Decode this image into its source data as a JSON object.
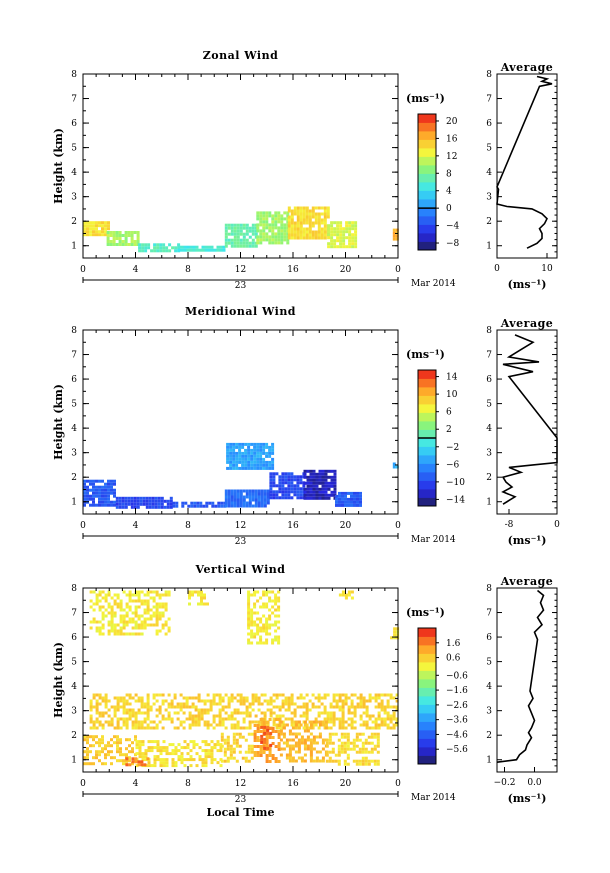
{
  "figure": {
    "date_label": "Mar 2014",
    "day_label": "23",
    "xlabel": "Local Time",
    "x_ticks": [
      "0",
      "4",
      "8",
      "12",
      "16",
      "20",
      "0"
    ],
    "y_ticks": [
      "1",
      "2",
      "3",
      "4",
      "5",
      "6",
      "7",
      "8"
    ],
    "ylabel": "Height (km)",
    "cbar_unit": "(ms⁻¹)",
    "profile_title": "Average",
    "profile_xlabel": "(ms⁻¹)"
  },
  "chart_data": [
    {
      "type": "heatmap",
      "title": "Zonal Wind",
      "xlabel": "",
      "ylabel": "Height (km)",
      "xlim": [
        0,
        24
      ],
      "ylim": [
        0.5,
        8
      ],
      "colorbar": {
        "unit": "(ms⁻¹)",
        "vmin": -9.6,
        "vmax": 21.6,
        "ticks": [
          -8,
          -4,
          0,
          4,
          8,
          12,
          16,
          20
        ],
        "tick_labels": [
          "−8",
          "−4",
          "0",
          "4",
          "8",
          "12",
          "16",
          "20"
        ],
        "zero_line": 0
      },
      "regions": [
        {
          "x": [
            0,
            2
          ],
          "y": [
            1.45,
            2.0
          ],
          "value": 14
        },
        {
          "x": [
            1.8,
            4.2
          ],
          "y": [
            1.0,
            1.6
          ],
          "value": 10
        },
        {
          "x": [
            4.2,
            7.2
          ],
          "y": [
            0.8,
            1.1
          ],
          "value": 6
        },
        {
          "x": [
            7.2,
            10.8
          ],
          "y": [
            0.8,
            1.0
          ],
          "value": 5
        },
        {
          "x": [
            10.8,
            13.2
          ],
          "y": [
            1.0,
            1.9
          ],
          "value": 7
        },
        {
          "x": [
            13.2,
            15.6
          ],
          "y": [
            1.1,
            2.4
          ],
          "value": 10
        },
        {
          "x": [
            15.6,
            18.6
          ],
          "y": [
            1.3,
            2.6
          ],
          "value": 14
        },
        {
          "x": [
            18.6,
            20.8
          ],
          "y": [
            0.9,
            2.0
          ],
          "value": 12
        },
        {
          "x": [
            23.6,
            24
          ],
          "y": [
            1.3,
            1.7
          ],
          "value": 16
        }
      ],
      "profile": {
        "title": "Average",
        "xlabel": "(ms⁻¹)",
        "xlim": [
          0,
          12
        ],
        "x_ticks": [
          0,
          10
        ],
        "height": [
          0.9,
          1.1,
          1.3,
          1.5,
          1.7,
          1.9,
          2.1,
          2.3,
          2.5,
          2.6,
          2.7,
          3.3,
          3.4,
          7.5,
          7.6,
          7.7,
          7.8,
          7.9
        ],
        "value": [
          6,
          8,
          9,
          9,
          8.5,
          9.5,
          10,
          9,
          7,
          2,
          0,
          0.3,
          0,
          8.5,
          11,
          9,
          10,
          8
        ]
      }
    },
    {
      "type": "heatmap",
      "title": "Meridional Wind",
      "xlabel": "",
      "ylabel": "Height (km)",
      "xlim": [
        0,
        24
      ],
      "ylim": [
        0.5,
        8
      ],
      "colorbar": {
        "unit": "(ms⁻¹)",
        "vmin": -15.5,
        "vmax": 15.5,
        "ticks": [
          -14,
          -10,
          -6,
          -2,
          2,
          6,
          10,
          14
        ],
        "tick_labels": [
          "−14",
          "−10",
          "−6",
          "−2",
          "2",
          "6",
          "10",
          "14"
        ],
        "zero_line": 0
      },
      "regions": [
        {
          "x": [
            0,
            2.5
          ],
          "y": [
            0.9,
            1.9
          ],
          "value": -9
        },
        {
          "x": [
            2.5,
            6.8
          ],
          "y": [
            0.8,
            1.2
          ],
          "value": -10
        },
        {
          "x": [
            6.8,
            10.8
          ],
          "y": [
            0.8,
            1.0
          ],
          "value": -9
        },
        {
          "x": [
            10.8,
            14.2
          ],
          "y": [
            0.8,
            1.5
          ],
          "value": -8
        },
        {
          "x": [
            14.2,
            16.8
          ],
          "y": [
            1.2,
            2.2
          ],
          "value": -10
        },
        {
          "x": [
            16.8,
            19.2
          ],
          "y": [
            1.1,
            2.3
          ],
          "value": -13
        },
        {
          "x": [
            19.2,
            21.2
          ],
          "y": [
            0.8,
            1.4
          ],
          "value": -9
        },
        {
          "x": [
            10.9,
            14.5
          ],
          "y": [
            2.3,
            3.4
          ],
          "value": -5
        },
        {
          "x": [
            23.6,
            24
          ],
          "y": [
            2.4,
            2.6
          ],
          "value": -4
        }
      ],
      "profile": {
        "title": "Average",
        "xlabel": "(ms⁻¹)",
        "xlim": [
          -10,
          0
        ],
        "x_ticks": [
          -8,
          0
        ],
        "height": [
          0.9,
          1.2,
          1.4,
          1.6,
          1.8,
          2.0,
          2.2,
          2.4,
          2.5,
          2.6,
          3.6,
          6.1,
          6.3,
          6.6,
          6.7,
          6.9,
          7.2,
          7.5,
          7.8
        ],
        "value": [
          -9,
          -7,
          -9,
          -7.5,
          -8.5,
          -9,
          -6,
          -8,
          -4,
          0,
          0,
          -8,
          -4,
          -9,
          -3,
          -8,
          -6,
          -4,
          -7
        ]
      }
    },
    {
      "type": "heatmap",
      "title": "Vertical Wind",
      "xlabel": "Local Time",
      "ylabel": "Height (km)",
      "xlim": [
        0,
        24
      ],
      "ylim": [
        0.5,
        8
      ],
      "colorbar": {
        "unit": "(ms⁻¹)",
        "vmin": -6.6,
        "vmax": 2.6,
        "ticks": [
          -5.6,
          -4.6,
          -3.6,
          -2.6,
          -1.6,
          -0.6,
          0.6,
          1.6
        ],
        "tick_labels": [
          "−5.6",
          "−4.6",
          "−3.6",
          "−2.6",
          "−1.6",
          "−0.6",
          "0.6",
          "1.6"
        ],
        "zero_line": null
      },
      "regions": [
        {
          "x": [
            0.5,
            6.5
          ],
          "y": [
            6.1,
            7.9
          ],
          "value": 0.2
        },
        {
          "x": [
            8.0,
            9.5
          ],
          "y": [
            7.3,
            7.9
          ],
          "value": 0.2
        },
        {
          "x": [
            12.5,
            15.0
          ],
          "y": [
            5.8,
            7.9
          ],
          "value": 0.2
        },
        {
          "x": [
            19.5,
            20.6
          ],
          "y": [
            7.6,
            7.9
          ],
          "value": 0.2
        },
        {
          "x": [
            23.4,
            24
          ],
          "y": [
            6.0,
            6.4
          ],
          "value": 0.2
        },
        {
          "x": [
            0.5,
            24
          ],
          "y": [
            2.3,
            3.7
          ],
          "value": 0.5
        },
        {
          "x": [
            0,
            4.0
          ],
          "y": [
            0.8,
            2.0
          ],
          "value": 0.6
        },
        {
          "x": [
            4.0,
            10.5
          ],
          "y": [
            0.8,
            1.8
          ],
          "value": 0.3
        },
        {
          "x": [
            10.5,
            13.0
          ],
          "y": [
            0.9,
            2.1
          ],
          "value": 0.5
        },
        {
          "x": [
            13.0,
            15.0
          ],
          "y": [
            0.9,
            2.7
          ],
          "value": 1.2
        },
        {
          "x": [
            15.0,
            18.5
          ],
          "y": [
            1.0,
            2.6
          ],
          "value": 0.9
        },
        {
          "x": [
            18.5,
            22.5
          ],
          "y": [
            0.8,
            2.1
          ],
          "value": 0.4
        },
        {
          "x": [
            3.0,
            5.0
          ],
          "y": [
            0.8,
            1.1
          ],
          "value": 1.6
        },
        {
          "x": [
            13.5,
            14.3
          ],
          "y": [
            1.4,
            2.5
          ],
          "value": 2.0
        }
      ],
      "profile": {
        "title": "Average",
        "xlabel": "(ms⁻¹)",
        "xlim": [
          -0.25,
          0.15
        ],
        "x_ticks": [
          -0.2,
          0.0
        ],
        "x_tick_labels": [
          "−0.2",
          "0.0"
        ],
        "height": [
          0.9,
          1.0,
          1.2,
          1.4,
          1.6,
          1.9,
          2.1,
          2.3,
          2.6,
          2.9,
          3.2,
          3.5,
          3.8,
          5.9,
          6.2,
          6.5,
          6.8,
          7.1,
          7.4,
          7.7,
          7.9
        ],
        "value": [
          -0.25,
          -0.12,
          -0.1,
          -0.06,
          -0.05,
          -0.02,
          -0.04,
          -0.02,
          0.0,
          -0.02,
          -0.04,
          -0.01,
          -0.03,
          0.02,
          0.0,
          0.05,
          0.02,
          0.06,
          0.04,
          0.06,
          0.02
        ]
      }
    }
  ]
}
